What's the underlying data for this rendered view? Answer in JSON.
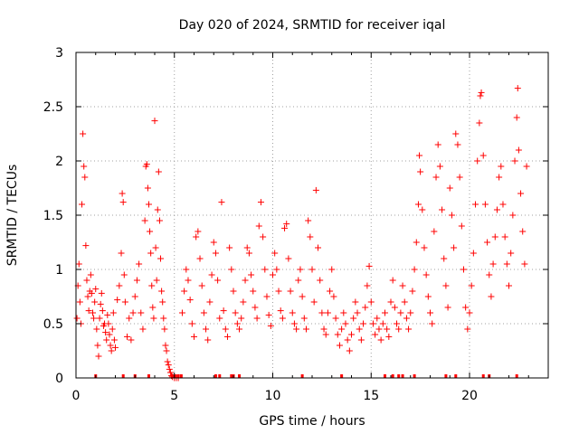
{
  "chart_data": {
    "type": "scatter",
    "title": "Day 020 of 2024, SRMTID for receiver iqal",
    "xlabel": "GPS time / hours",
    "ylabel": "SRMTID / TECUs",
    "xlim": [
      0,
      24
    ],
    "ylim": [
      0,
      3
    ],
    "xticks": [
      0,
      5,
      10,
      15,
      20
    ],
    "yticks": [
      0,
      0.5,
      1,
      1.5,
      2,
      2.5,
      3
    ],
    "xtick_labels": [
      "0",
      "5",
      "10",
      "15",
      "20"
    ],
    "ytick_labels": [
      "0",
      "0.5",
      "1",
      "1.5",
      "2",
      "2.5",
      "3"
    ],
    "grid": true,
    "marker": "+",
    "color": "#ff0000",
    "series": [
      {
        "name": "SRMTID",
        "note": "representative sampled points (dense scatter)",
        "points": [
          [
            0.05,
            0.55
          ],
          [
            0.1,
            0.85
          ],
          [
            0.15,
            1.05
          ],
          [
            0.2,
            0.7
          ],
          [
            0.25,
            0.5
          ],
          [
            0.3,
            1.6
          ],
          [
            0.35,
            2.25
          ],
          [
            0.4,
            1.95
          ],
          [
            0.45,
            1.85
          ],
          [
            0.5,
            1.22
          ],
          [
            0.55,
            0.9
          ],
          [
            0.6,
            0.75
          ],
          [
            0.65,
            0.62
          ],
          [
            0.7,
            0.8
          ],
          [
            0.75,
            0.95
          ],
          [
            0.8,
            0.78
          ],
          [
            0.85,
            0.6
          ],
          [
            0.9,
            0.55
          ],
          [
            0.95,
            0.7
          ],
          [
            1.0,
            0.82
          ],
          [
            1.05,
            0.45
          ],
          [
            1.1,
            0.3
          ],
          [
            1.15,
            0.2
          ],
          [
            1.2,
            0.55
          ],
          [
            1.25,
            0.68
          ],
          [
            1.3,
            0.78
          ],
          [
            1.35,
            0.62
          ],
          [
            1.4,
            0.48
          ],
          [
            1.45,
            0.5
          ],
          [
            1.5,
            0.42
          ],
          [
            1.55,
            0.35
          ],
          [
            1.6,
            0.58
          ],
          [
            1.65,
            0.5
          ],
          [
            1.7,
            0.4
          ],
          [
            1.75,
            0.3
          ],
          [
            1.8,
            0.25
          ],
          [
            1.85,
            0.45
          ],
          [
            1.9,
            0.6
          ],
          [
            1.95,
            0.35
          ],
          [
            2.0,
            0.28
          ],
          [
            2.1,
            0.72
          ],
          [
            2.2,
            0.85
          ],
          [
            2.3,
            1.15
          ],
          [
            2.35,
            1.7
          ],
          [
            2.4,
            1.62
          ],
          [
            2.45,
            0.95
          ],
          [
            2.5,
            0.7
          ],
          [
            2.6,
            0.38
          ],
          [
            2.7,
            0.55
          ],
          [
            2.8,
            0.35
          ],
          [
            2.9,
            0.6
          ],
          [
            3.0,
            0.75
          ],
          [
            3.1,
            0.9
          ],
          [
            3.2,
            1.05
          ],
          [
            3.3,
            0.6
          ],
          [
            3.4,
            0.45
          ],
          [
            3.5,
            1.45
          ],
          [
            3.55,
            1.95
          ],
          [
            3.6,
            1.97
          ],
          [
            3.65,
            1.75
          ],
          [
            3.7,
            1.6
          ],
          [
            3.75,
            1.35
          ],
          [
            3.8,
            1.15
          ],
          [
            3.85,
            0.85
          ],
          [
            3.9,
            0.65
          ],
          [
            3.95,
            0.55
          ],
          [
            4.0,
            2.37
          ],
          [
            4.05,
            1.2
          ],
          [
            4.1,
            0.9
          ],
          [
            4.15,
            1.55
          ],
          [
            4.2,
            1.9
          ],
          [
            4.25,
            1.45
          ],
          [
            4.3,
            1.1
          ],
          [
            4.35,
            0.8
          ],
          [
            4.4,
            0.7
          ],
          [
            4.45,
            0.55
          ],
          [
            4.5,
            0.45
          ],
          [
            4.55,
            0.3
          ],
          [
            4.6,
            0.25
          ],
          [
            4.65,
            0.15
          ],
          [
            4.7,
            0.12
          ],
          [
            4.75,
            0.08
          ],
          [
            4.8,
            0.05
          ],
          [
            4.85,
            0.02
          ],
          [
            4.9,
            0.01
          ],
          [
            5.0,
            0.0
          ],
          [
            5.1,
            0.0
          ],
          [
            5.2,
            0.0
          ],
          [
            5.4,
            0.6
          ],
          [
            5.5,
            0.8
          ],
          [
            5.6,
            1.0
          ],
          [
            5.7,
            0.9
          ],
          [
            5.8,
            0.72
          ],
          [
            5.9,
            0.5
          ],
          [
            6.0,
            0.38
          ],
          [
            6.1,
            1.3
          ],
          [
            6.2,
            1.35
          ],
          [
            6.3,
            1.1
          ],
          [
            6.4,
            0.85
          ],
          [
            6.5,
            0.6
          ],
          [
            6.6,
            0.45
          ],
          [
            6.7,
            0.35
          ],
          [
            6.8,
            0.7
          ],
          [
            6.9,
            0.95
          ],
          [
            7.0,
            1.25
          ],
          [
            7.1,
            1.15
          ],
          [
            7.2,
            0.9
          ],
          [
            7.3,
            0.55
          ],
          [
            7.4,
            1.62
          ],
          [
            7.5,
            0.62
          ],
          [
            7.6,
            0.45
          ],
          [
            7.7,
            0.38
          ],
          [
            7.8,
            1.2
          ],
          [
            7.9,
            1.0
          ],
          [
            8.0,
            0.8
          ],
          [
            8.1,
            0.6
          ],
          [
            8.2,
            0.5
          ],
          [
            8.3,
            0.45
          ],
          [
            8.4,
            0.55
          ],
          [
            8.5,
            0.7
          ],
          [
            8.6,
            0.9
          ],
          [
            8.7,
            1.2
          ],
          [
            8.8,
            1.15
          ],
          [
            8.9,
            0.95
          ],
          [
            9.0,
            0.8
          ],
          [
            9.1,
            0.65
          ],
          [
            9.2,
            0.55
          ],
          [
            9.3,
            1.4
          ],
          [
            9.4,
            1.62
          ],
          [
            9.5,
            1.3
          ],
          [
            9.6,
            1.0
          ],
          [
            9.7,
            0.75
          ],
          [
            9.8,
            0.58
          ],
          [
            9.9,
            0.48
          ],
          [
            10.0,
            0.95
          ],
          [
            10.1,
            1.15
          ],
          [
            10.2,
            1.0
          ],
          [
            10.3,
            0.8
          ],
          [
            10.4,
            0.62
          ],
          [
            10.5,
            0.55
          ],
          [
            10.6,
            1.38
          ],
          [
            10.7,
            1.42
          ],
          [
            10.8,
            1.1
          ],
          [
            10.9,
            0.8
          ],
          [
            11.0,
            0.6
          ],
          [
            11.1,
            0.5
          ],
          [
            11.2,
            0.45
          ],
          [
            11.3,
            0.9
          ],
          [
            11.4,
            1.0
          ],
          [
            11.5,
            0.75
          ],
          [
            11.6,
            0.55
          ],
          [
            11.7,
            0.45
          ],
          [
            11.8,
            1.45
          ],
          [
            11.9,
            1.3
          ],
          [
            12.0,
            1.0
          ],
          [
            12.1,
            0.7
          ],
          [
            12.2,
            1.73
          ],
          [
            12.3,
            1.2
          ],
          [
            12.4,
            0.9
          ],
          [
            12.5,
            0.6
          ],
          [
            12.6,
            0.45
          ],
          [
            12.7,
            0.4
          ],
          [
            12.8,
            0.6
          ],
          [
            12.9,
            0.8
          ],
          [
            13.0,
            1.0
          ],
          [
            13.1,
            0.75
          ],
          [
            13.2,
            0.55
          ],
          [
            13.3,
            0.4
          ],
          [
            13.4,
            0.3
          ],
          [
            13.5,
            0.45
          ],
          [
            13.6,
            0.6
          ],
          [
            13.7,
            0.5
          ],
          [
            13.8,
            0.35
          ],
          [
            13.9,
            0.25
          ],
          [
            14.0,
            0.4
          ],
          [
            14.1,
            0.55
          ],
          [
            14.2,
            0.7
          ],
          [
            14.3,
            0.6
          ],
          [
            14.4,
            0.45
          ],
          [
            14.5,
            0.35
          ],
          [
            14.6,
            0.5
          ],
          [
            14.7,
            0.65
          ],
          [
            14.8,
            0.85
          ],
          [
            14.9,
            1.03
          ],
          [
            15.0,
            0.7
          ],
          [
            15.1,
            0.5
          ],
          [
            15.2,
            0.4
          ],
          [
            15.3,
            0.55
          ],
          [
            15.4,
            0.45
          ],
          [
            15.5,
            0.35
          ],
          [
            15.6,
            0.5
          ],
          [
            15.7,
            0.6
          ],
          [
            15.8,
            0.45
          ],
          [
            15.9,
            0.38
          ],
          [
            16.0,
            0.7
          ],
          [
            16.1,
            0.9
          ],
          [
            16.2,
            0.65
          ],
          [
            16.3,
            0.5
          ],
          [
            16.4,
            0.45
          ],
          [
            16.5,
            0.6
          ],
          [
            16.6,
            0.85
          ],
          [
            16.7,
            0.7
          ],
          [
            16.8,
            0.55
          ],
          [
            16.9,
            0.45
          ],
          [
            17.0,
            0.6
          ],
          [
            17.1,
            0.8
          ],
          [
            17.2,
            1.0
          ],
          [
            17.3,
            1.25
          ],
          [
            17.4,
            1.6
          ],
          [
            17.45,
            2.05
          ],
          [
            17.5,
            1.9
          ],
          [
            17.6,
            1.55
          ],
          [
            17.7,
            1.2
          ],
          [
            17.8,
            0.95
          ],
          [
            17.9,
            0.75
          ],
          [
            18.0,
            0.6
          ],
          [
            18.1,
            0.5
          ],
          [
            18.2,
            1.35
          ],
          [
            18.3,
            1.85
          ],
          [
            18.4,
            2.15
          ],
          [
            18.5,
            1.95
          ],
          [
            18.6,
            1.55
          ],
          [
            18.7,
            1.1
          ],
          [
            18.8,
            0.85
          ],
          [
            18.9,
            0.65
          ],
          [
            19.0,
            1.75
          ],
          [
            19.1,
            1.5
          ],
          [
            19.2,
            1.2
          ],
          [
            19.3,
            2.25
          ],
          [
            19.4,
            2.15
          ],
          [
            19.5,
            1.85
          ],
          [
            19.6,
            1.4
          ],
          [
            19.7,
            1.0
          ],
          [
            19.8,
            0.65
          ],
          [
            19.9,
            0.45
          ],
          [
            20.0,
            0.6
          ],
          [
            20.1,
            0.85
          ],
          [
            20.2,
            1.15
          ],
          [
            20.3,
            1.6
          ],
          [
            20.4,
            2.0
          ],
          [
            20.5,
            2.35
          ],
          [
            20.55,
            2.6
          ],
          [
            20.6,
            2.63
          ],
          [
            20.7,
            2.05
          ],
          [
            20.8,
            1.6
          ],
          [
            20.9,
            1.25
          ],
          [
            21.0,
            0.95
          ],
          [
            21.1,
            0.75
          ],
          [
            21.2,
            1.05
          ],
          [
            21.3,
            1.3
          ],
          [
            21.4,
            1.55
          ],
          [
            21.5,
            1.85
          ],
          [
            21.6,
            1.95
          ],
          [
            21.7,
            1.6
          ],
          [
            21.8,
            1.3
          ],
          [
            21.9,
            1.05
          ],
          [
            22.0,
            0.85
          ],
          [
            22.1,
            1.15
          ],
          [
            22.2,
            1.5
          ],
          [
            22.3,
            2.0
          ],
          [
            22.4,
            2.4
          ],
          [
            22.45,
            2.67
          ],
          [
            22.5,
            2.1
          ],
          [
            22.6,
            1.7
          ],
          [
            22.7,
            1.35
          ],
          [
            22.8,
            1.05
          ],
          [
            22.9,
            1.95
          ]
        ]
      }
    ],
    "floor_points_x": [
      1.0,
      2.4,
      3.0,
      3.7,
      4.9,
      5.05,
      5.2,
      5.35,
      7.1,
      7.3,
      7.9,
      8.0,
      8.3,
      11.5,
      13.5,
      15.7,
      16.1,
      16.4,
      16.6,
      17.2,
      18.8,
      19.3,
      20.7,
      21.0,
      22.4
    ]
  }
}
